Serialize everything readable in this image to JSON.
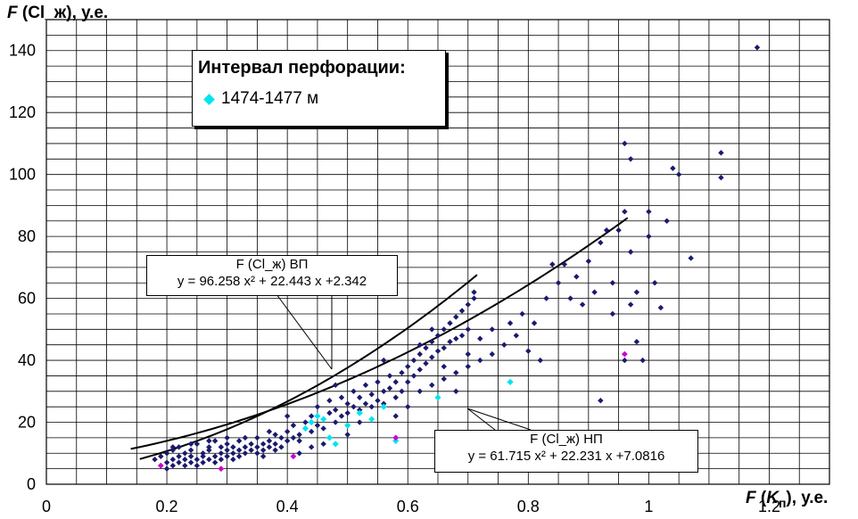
{
  "chart_data": {
    "type": "scatter",
    "y_title": {
      "var": "F",
      "text": " (Cl_ж), у.е."
    },
    "x_title": {
      "var": "F",
      "open": " (",
      "sub_var": "K",
      "sub": "п",
      "close": "), у.е."
    },
    "xlim": [
      0,
      1.3
    ],
    "ylim": [
      0,
      150
    ],
    "x_ticks": [
      "0",
      "0.2",
      "0.4",
      "0.6",
      "0.8",
      "1",
      "1.2"
    ],
    "x_tick_values": [
      0,
      0.2,
      0.4,
      0.6,
      0.8,
      1.0,
      1.2
    ],
    "y_ticks": [
      "0",
      "20",
      "40",
      "60",
      "80",
      "100",
      "120",
      "140"
    ],
    "y_tick_values": [
      0,
      20,
      40,
      60,
      80,
      100,
      120,
      140
    ],
    "grid": true,
    "legend": {
      "title": "Интервал перфорации:",
      "entries": [
        {
          "label": "1474-1477 м",
          "color": "#00e5ee"
        }
      ],
      "placement": "top-left"
    },
    "colors": {
      "main": "#1a1a6e",
      "highlight": "#00e5ee",
      "extreme": "#cc00cc",
      "curve": "#000000"
    },
    "curves": [
      {
        "name": "ВП",
        "label_line1": "F (Cl_ж)  ВП",
        "label_line2": "y = 96.258 x² + 22.443 x +2.342",
        "a": 96.258,
        "b": 22.443,
        "c": 2.342,
        "x_range": [
          0.155,
          0.715
        ]
      },
      {
        "name": "НП",
        "label_line1": "F (Cl_ж)  НП",
        "label_line2": "y = 61.715 x² + 22.231 x +7.0816",
        "a": 61.715,
        "b": 22.231,
        "c": 7.0816,
        "x_range": [
          0.14,
          0.965
        ]
      }
    ],
    "series_main": [
      [
        0.18,
        8
      ],
      [
        0.19,
        9
      ],
      [
        0.19,
        6
      ],
      [
        0.2,
        7
      ],
      [
        0.2,
        10
      ],
      [
        0.2,
        5
      ],
      [
        0.21,
        8
      ],
      [
        0.21,
        11
      ],
      [
        0.21,
        6
      ],
      [
        0.22,
        9
      ],
      [
        0.22,
        7
      ],
      [
        0.22,
        12
      ],
      [
        0.23,
        8
      ],
      [
        0.23,
        6
      ],
      [
        0.23,
        10
      ],
      [
        0.24,
        9
      ],
      [
        0.24,
        11
      ],
      [
        0.24,
        7
      ],
      [
        0.25,
        8
      ],
      [
        0.25,
        13
      ],
      [
        0.25,
        6
      ],
      [
        0.26,
        10
      ],
      [
        0.26,
        9
      ],
      [
        0.26,
        7
      ],
      [
        0.27,
        11
      ],
      [
        0.27,
        12
      ],
      [
        0.27,
        8
      ],
      [
        0.28,
        9
      ],
      [
        0.28,
        14
      ],
      [
        0.28,
        7
      ],
      [
        0.29,
        10
      ],
      [
        0.29,
        12
      ],
      [
        0.29,
        8
      ],
      [
        0.3,
        11
      ],
      [
        0.3,
        9
      ],
      [
        0.3,
        13
      ],
      [
        0.31,
        10
      ],
      [
        0.31,
        12
      ],
      [
        0.31,
        8
      ],
      [
        0.32,
        11
      ],
      [
        0.32,
        14
      ],
      [
        0.32,
        9
      ],
      [
        0.33,
        12
      ],
      [
        0.33,
        10
      ],
      [
        0.34,
        13
      ],
      [
        0.34,
        11
      ],
      [
        0.35,
        12
      ],
      [
        0.35,
        15
      ],
      [
        0.35,
        10
      ],
      [
        0.36,
        13
      ],
      [
        0.36,
        11
      ],
      [
        0.37,
        14
      ],
      [
        0.37,
        12
      ],
      [
        0.38,
        16
      ],
      [
        0.38,
        13
      ],
      [
        0.39,
        15
      ],
      [
        0.39,
        12
      ],
      [
        0.4,
        14
      ],
      [
        0.4,
        17
      ],
      [
        0.41,
        15
      ],
      [
        0.41,
        19
      ],
      [
        0.42,
        16
      ],
      [
        0.42,
        14
      ],
      [
        0.43,
        18
      ],
      [
        0.43,
        20
      ],
      [
        0.44,
        17
      ],
      [
        0.44,
        22
      ],
      [
        0.45,
        19
      ],
      [
        0.45,
        25
      ],
      [
        0.46,
        21
      ],
      [
        0.46,
        18
      ],
      [
        0.47,
        23
      ],
      [
        0.47,
        27
      ],
      [
        0.48,
        20
      ],
      [
        0.48,
        24
      ],
      [
        0.49,
        22
      ],
      [
        0.49,
        28
      ],
      [
        0.5,
        23
      ],
      [
        0.5,
        26
      ],
      [
        0.51,
        25
      ],
      [
        0.51,
        30
      ],
      [
        0.52,
        24
      ],
      [
        0.52,
        28
      ],
      [
        0.53,
        26
      ],
      [
        0.53,
        32
      ],
      [
        0.54,
        25
      ],
      [
        0.54,
        29
      ],
      [
        0.55,
        27
      ],
      [
        0.55,
        33
      ],
      [
        0.56,
        30
      ],
      [
        0.56,
        26
      ],
      [
        0.57,
        31
      ],
      [
        0.57,
        35
      ],
      [
        0.58,
        28
      ],
      [
        0.58,
        33
      ],
      [
        0.59,
        36
      ],
      [
        0.59,
        30
      ],
      [
        0.6,
        38
      ],
      [
        0.6,
        33
      ],
      [
        0.61,
        40
      ],
      [
        0.61,
        35
      ],
      [
        0.62,
        42
      ],
      [
        0.62,
        37
      ],
      [
        0.63,
        44
      ],
      [
        0.63,
        39
      ],
      [
        0.64,
        46
      ],
      [
        0.64,
        41
      ],
      [
        0.65,
        48
      ],
      [
        0.65,
        43
      ],
      [
        0.66,
        50
      ],
      [
        0.66,
        44
      ],
      [
        0.67,
        52
      ],
      [
        0.67,
        46
      ],
      [
        0.68,
        54
      ],
      [
        0.68,
        47
      ],
      [
        0.69,
        56
      ],
      [
        0.69,
        48
      ],
      [
        0.7,
        58
      ],
      [
        0.7,
        50
      ],
      [
        0.71,
        60
      ],
      [
        0.71,
        62
      ],
      [
        0.62,
        30
      ],
      [
        0.64,
        32
      ],
      [
        0.66,
        34
      ],
      [
        0.68,
        36
      ],
      [
        0.7,
        38
      ],
      [
        0.72,
        40
      ],
      [
        0.74,
        42
      ],
      [
        0.72,
        47
      ],
      [
        0.74,
        50
      ],
      [
        0.76,
        45
      ],
      [
        0.77,
        52
      ],
      [
        0.78,
        48
      ],
      [
        0.79,
        55
      ],
      [
        0.8,
        43
      ],
      [
        0.81,
        52
      ],
      [
        0.82,
        40
      ],
      [
        0.83,
        60
      ],
      [
        0.84,
        71
      ],
      [
        0.85,
        65
      ],
      [
        0.86,
        71
      ],
      [
        0.87,
        60
      ],
      [
        0.88,
        67
      ],
      [
        0.89,
        58
      ],
      [
        0.9,
        72
      ],
      [
        0.91,
        62
      ],
      [
        0.92,
        78
      ],
      [
        0.93,
        82
      ],
      [
        0.94,
        65
      ],
      [
        0.95,
        82
      ],
      [
        0.96,
        110
      ],
      [
        0.96,
        88
      ],
      [
        0.97,
        75
      ],
      [
        0.97,
        58
      ],
      [
        0.98,
        62
      ],
      [
        0.98,
        46
      ],
      [
        0.99,
        40
      ],
      [
        1.0,
        80
      ],
      [
        1.01,
        65
      ],
      [
        1.02,
        57
      ],
      [
        1.04,
        102
      ],
      [
        1.05,
        100
      ],
      [
        1.07,
        73
      ],
      [
        1.12,
        99
      ],
      [
        1.12,
        107
      ],
      [
        1.18,
        141
      ],
      [
        0.92,
        27
      ],
      [
        0.97,
        105
      ],
      [
        1.0,
        88
      ],
      [
        1.03,
        85
      ],
      [
        0.94,
        55
      ],
      [
        0.96,
        40
      ],
      [
        0.33,
        15
      ],
      [
        0.37,
        17
      ],
      [
        0.4,
        22
      ],
      [
        0.44,
        12
      ],
      [
        0.48,
        32
      ],
      [
        0.52,
        20
      ],
      [
        0.56,
        40
      ],
      [
        0.58,
        22
      ],
      [
        0.6,
        25
      ],
      [
        0.62,
        45
      ],
      [
        0.64,
        50
      ],
      [
        0.66,
        38
      ],
      [
        0.68,
        30
      ],
      [
        0.7,
        42
      ],
      [
        0.3,
        15
      ],
      [
        0.27,
        14
      ],
      [
        0.24,
        13
      ],
      [
        0.21,
        12
      ],
      [
        0.36,
        9
      ],
      [
        0.38,
        11
      ],
      [
        0.42,
        10
      ],
      [
        0.46,
        13
      ],
      [
        0.5,
        16
      ]
    ],
    "series_highlight": [
      [
        0.43,
        18
      ],
      [
        0.44,
        20
      ],
      [
        0.45,
        22
      ],
      [
        0.46,
        21
      ],
      [
        0.47,
        15
      ],
      [
        0.48,
        13
      ],
      [
        0.5,
        19
      ],
      [
        0.52,
        23
      ],
      [
        0.54,
        21
      ],
      [
        0.56,
        25
      ],
      [
        0.58,
        14
      ],
      [
        0.65,
        28
      ],
      [
        0.77,
        33
      ]
    ],
    "series_extreme": [
      [
        0.19,
        6
      ],
      [
        0.29,
        5
      ],
      [
        0.58,
        15
      ],
      [
        0.96,
        42
      ],
      [
        0.41,
        9
      ]
    ]
  }
}
